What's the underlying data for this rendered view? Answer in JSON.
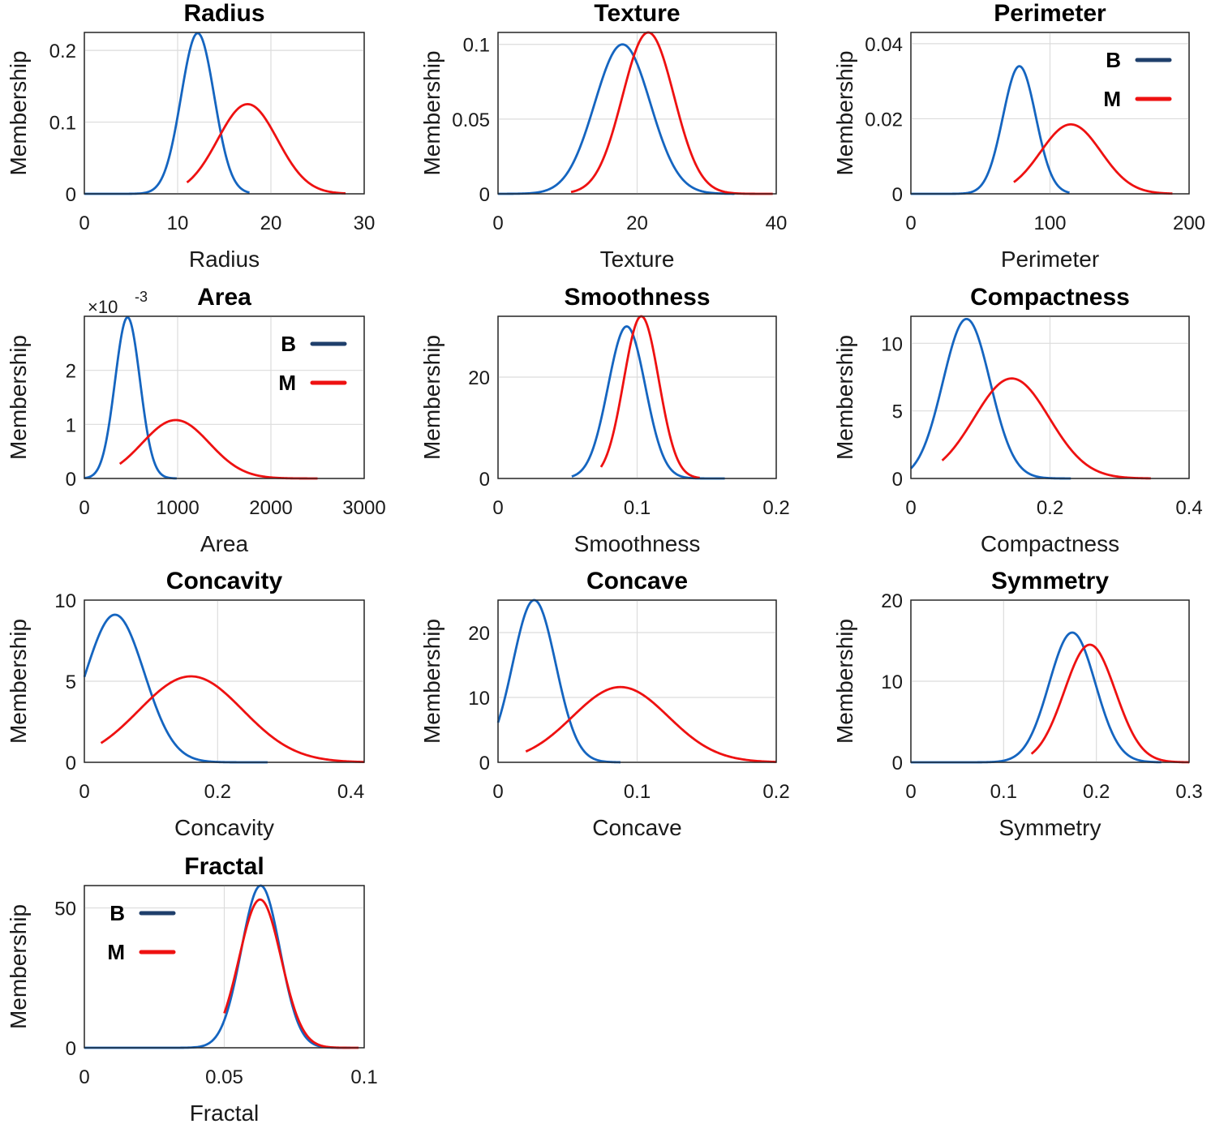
{
  "colors": {
    "B": "#1565c0",
    "M": "#ee1111",
    "legend_B": "#1f3f6b",
    "legend_M": "#ee1111"
  },
  "legend": {
    "B": "B",
    "M": "M"
  },
  "y_axis_label": "Membership",
  "chart_data": [
    {
      "type": "line",
      "title": "Radius",
      "xlabel": "Radius",
      "ylabel": "Membership",
      "xlim": [
        0,
        30
      ],
      "ylim": [
        0,
        0.225
      ],
      "xticks": [
        0,
        10,
        20,
        30
      ],
      "xtick_labels": [
        "0",
        "10",
        "20",
        "30"
      ],
      "yticks": [
        0,
        0.1,
        0.2
      ],
      "ytick_labels": [
        "0",
        "0.1",
        "0.2"
      ],
      "series": [
        {
          "name": "B",
          "mu": 12.15,
          "sigma": 1.78,
          "peak": 0.224,
          "x_range": [
            0,
            17.7
          ]
        },
        {
          "name": "M",
          "mu": 17.5,
          "sigma": 3.2,
          "peak": 0.125,
          "x_range": [
            11,
            28
          ]
        }
      ]
    },
    {
      "type": "line",
      "title": "Texture",
      "xlabel": "Texture",
      "ylabel": "Membership",
      "xlim": [
        0,
        40
      ],
      "ylim": [
        0,
        0.108
      ],
      "xticks": [
        0,
        20,
        40
      ],
      "xtick_labels": [
        "0",
        "20",
        "40"
      ],
      "yticks": [
        0,
        0.05,
        0.1
      ],
      "ytick_labels": [
        "0",
        "0.05",
        "0.1"
      ],
      "series": [
        {
          "name": "B",
          "mu": 17.9,
          "sigma": 4.0,
          "peak": 0.1,
          "x_range": [
            0,
            34
          ]
        },
        {
          "name": "M",
          "mu": 21.6,
          "sigma": 3.7,
          "peak": 0.108,
          "x_range": [
            10.5,
            39.5
          ]
        }
      ]
    },
    {
      "type": "line",
      "title": "Perimeter",
      "xlabel": "Perimeter",
      "ylabel": "Membership",
      "xlim": [
        0,
        200
      ],
      "ylim": [
        0,
        0.043
      ],
      "xticks": [
        0,
        100,
        200
      ],
      "xtick_labels": [
        "0",
        "100",
        "200"
      ],
      "yticks": [
        0,
        0.02,
        0.04
      ],
      "ytick_labels": [
        "0",
        "0.02",
        "0.04"
      ],
      "legend_position": "top-right",
      "series": [
        {
          "name": "B",
          "mu": 78,
          "sigma": 11.8,
          "peak": 0.034,
          "x_range": [
            0,
            114
          ]
        },
        {
          "name": "M",
          "mu": 115,
          "sigma": 21.7,
          "peak": 0.0185,
          "x_range": [
            74,
            188
          ]
        }
      ]
    },
    {
      "type": "line",
      "title": "Area",
      "xlabel": "Area",
      "ylabel": "Membership",
      "multiplier_base": "×10",
      "multiplier_exp": "-3",
      "xlim": [
        0,
        3000
      ],
      "ylim": [
        0,
        3.0
      ],
      "xticks": [
        0,
        1000,
        2000,
        3000
      ],
      "xtick_labels": [
        "0",
        "1000",
        "2000",
        "3000"
      ],
      "yticks": [
        0,
        1,
        2
      ],
      "ytick_labels": [
        "0",
        "1",
        "2"
      ],
      "legend_position": "top-right",
      "series": [
        {
          "name": "B",
          "mu": 463,
          "sigma": 134,
          "peak": 2.98,
          "x_range": [
            0,
            990
          ]
        },
        {
          "name": "M",
          "mu": 980,
          "sigma": 360,
          "peak": 1.08,
          "x_range": [
            380,
            2500
          ]
        }
      ]
    },
    {
      "type": "line",
      "title": "Smoothness",
      "xlabel": "Smoothness",
      "ylabel": "Membership",
      "xlim": [
        0,
        0.2
      ],
      "ylim": [
        0,
        32
      ],
      "xticks": [
        0,
        0.1,
        0.2
      ],
      "xtick_labels": [
        "0",
        "0.1",
        "0.2"
      ],
      "yticks": [
        0,
        20
      ],
      "ytick_labels": [
        "0",
        "20"
      ],
      "series": [
        {
          "name": "B",
          "mu": 0.0925,
          "sigma": 0.0134,
          "peak": 30,
          "x_range": [
            0.053,
            0.163
          ]
        },
        {
          "name": "M",
          "mu": 0.103,
          "sigma": 0.0126,
          "peak": 32,
          "x_range": [
            0.074,
            0.145
          ]
        }
      ]
    },
    {
      "type": "line",
      "title": "Compactness",
      "xlabel": "Compactness",
      "ylabel": "Membership",
      "xlim": [
        0,
        0.4
      ],
      "ylim": [
        0,
        12
      ],
      "xticks": [
        0,
        0.2,
        0.4
      ],
      "xtick_labels": [
        "0",
        "0.2",
        "0.4"
      ],
      "yticks": [
        0,
        5,
        10
      ],
      "ytick_labels": [
        "0",
        "5",
        "10"
      ],
      "series": [
        {
          "name": "B",
          "mu": 0.08,
          "sigma": 0.034,
          "peak": 11.8,
          "x_range": [
            0,
            0.23
          ]
        },
        {
          "name": "M",
          "mu": 0.145,
          "sigma": 0.054,
          "peak": 7.4,
          "x_range": [
            0.045,
            0.345
          ]
        }
      ]
    },
    {
      "type": "line",
      "title": "Concavity",
      "xlabel": "Concavity",
      "ylabel": "Membership",
      "xlim": [
        0,
        0.42
      ],
      "ylim": [
        0,
        10
      ],
      "xticks": [
        0,
        0.2,
        0.4
      ],
      "xtick_labels": [
        "0",
        "0.2",
        "0.4"
      ],
      "yticks": [
        0,
        5,
        10
      ],
      "ytick_labels": [
        "0",
        "5",
        "10"
      ],
      "series": [
        {
          "name": "B",
          "mu": 0.046,
          "sigma": 0.044,
          "peak": 9.1,
          "x_range": [
            0,
            0.275
          ]
        },
        {
          "name": "M",
          "mu": 0.16,
          "sigma": 0.078,
          "peak": 5.3,
          "x_range": [
            0.025,
            0.42
          ]
        }
      ]
    },
    {
      "type": "line",
      "title": "Concave",
      "xlabel": "Concave",
      "ylabel": "Membership",
      "xlim": [
        0,
        0.2
      ],
      "ylim": [
        0,
        25
      ],
      "xticks": [
        0,
        0.1,
        0.2
      ],
      "xtick_labels": [
        "0",
        "0.1",
        "0.2"
      ],
      "yticks": [
        0,
        10,
        20
      ],
      "ytick_labels": [
        "0",
        "10",
        "20"
      ],
      "series": [
        {
          "name": "B",
          "mu": 0.026,
          "sigma": 0.0155,
          "peak": 25,
          "x_range": [
            0,
            0.088
          ]
        },
        {
          "name": "M",
          "mu": 0.088,
          "sigma": 0.0345,
          "peak": 11.6,
          "x_range": [
            0.02,
            0.2
          ]
        }
      ]
    },
    {
      "type": "line",
      "title": "Symmetry",
      "xlabel": "Symmetry",
      "ylabel": "Membership",
      "xlim": [
        0,
        0.3
      ],
      "ylim": [
        0,
        20
      ],
      "xticks": [
        0,
        0.1,
        0.2,
        0.3
      ],
      "xtick_labels": [
        "0",
        "0.1",
        "0.2",
        "0.3"
      ],
      "yticks": [
        0,
        10,
        20
      ],
      "ytick_labels": [
        "0",
        "10",
        "20"
      ],
      "series": [
        {
          "name": "B",
          "mu": 0.174,
          "sigma": 0.025,
          "peak": 16,
          "x_range": [
            0,
            0.27
          ]
        },
        {
          "name": "M",
          "mu": 0.193,
          "sigma": 0.0275,
          "peak": 14.5,
          "x_range": [
            0.13,
            0.3
          ]
        }
      ]
    },
    {
      "type": "line",
      "title": "Fractal",
      "xlabel": "Fractal",
      "ylabel": "Membership",
      "xlim": [
        0,
        0.1
      ],
      "ylim": [
        0,
        58
      ],
      "xticks": [
        0,
        0.05,
        0.1
      ],
      "xtick_labels": [
        "0",
        "0.05",
        "0.1"
      ],
      "yticks": [
        0,
        50
      ],
      "ytick_labels": [
        "0",
        "50"
      ],
      "legend_position": "top-left",
      "series": [
        {
          "name": "B",
          "mu": 0.063,
          "sigma": 0.0069,
          "peak": 58,
          "x_range": [
            0,
            0.095
          ]
        },
        {
          "name": "M",
          "mu": 0.0628,
          "sigma": 0.0075,
          "peak": 53,
          "x_range": [
            0.05,
            0.098
          ]
        }
      ]
    }
  ]
}
